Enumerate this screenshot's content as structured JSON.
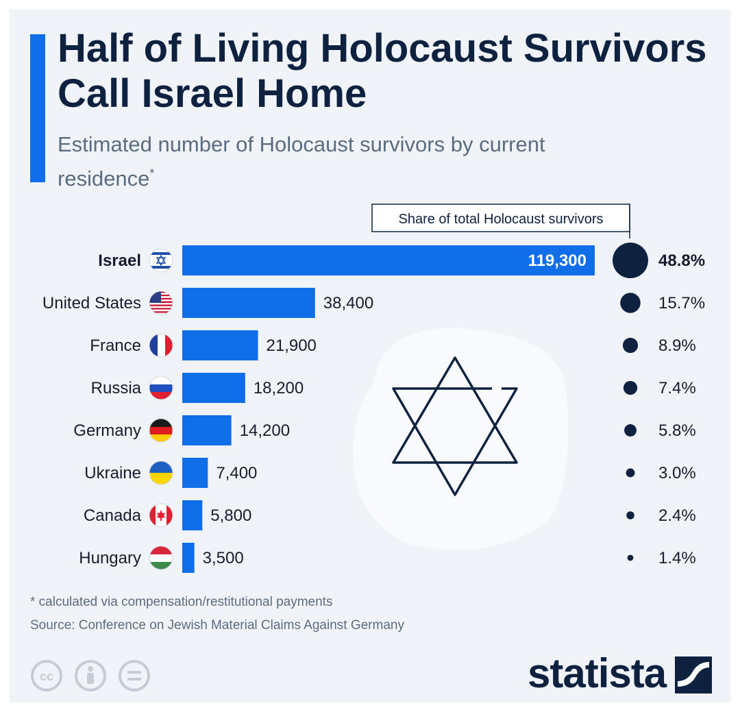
{
  "header": {
    "title": "Half of Living Holocaust Survivors Call Israel Home",
    "subtitle": "Estimated number of Holocaust survivors by current residence",
    "subtitle_mark": "*"
  },
  "chart_data": {
    "type": "bar",
    "orientation": "horizontal",
    "categories": [
      "Israel",
      "United States",
      "France",
      "Russia",
      "Germany",
      "Ukraine",
      "Canada",
      "Hungary"
    ],
    "values": [
      119300,
      38400,
      21900,
      18200,
      14200,
      7400,
      5800,
      3500
    ],
    "value_labels": [
      "119,300",
      "38,400",
      "21,900",
      "18,200",
      "14,200",
      "7,400",
      "5,800",
      "3,500"
    ],
    "share_header": "Share of total Holocaust survivors",
    "shares": [
      48.8,
      15.7,
      8.9,
      7.4,
      5.8,
      3.0,
      2.4,
      1.4
    ],
    "share_labels": [
      "48.8%",
      "15.7%",
      "8.9%",
      "7.4%",
      "5.8%",
      "3.0%",
      "2.4%",
      "1.4%"
    ],
    "flags": [
      "israel-flag-icon",
      "usa-flag-icon",
      "france-flag-icon",
      "russia-flag-icon",
      "germany-flag-icon",
      "ukraine-flag-icon",
      "canada-flag-icon",
      "hungary-flag-icon"
    ],
    "highlight_index": 0,
    "bar_color": "#0f6ee8",
    "dot_color": "#0e2240",
    "decoration": "star-of-david-icon"
  },
  "footer": {
    "note": "* calculated via compensation/restitutional payments",
    "source": "Source: Conference on Jewish Material Claims Against Germany",
    "license_icons": [
      "cc-icon",
      "attribution-icon",
      "no-derivatives-icon"
    ],
    "logo": "statista"
  }
}
